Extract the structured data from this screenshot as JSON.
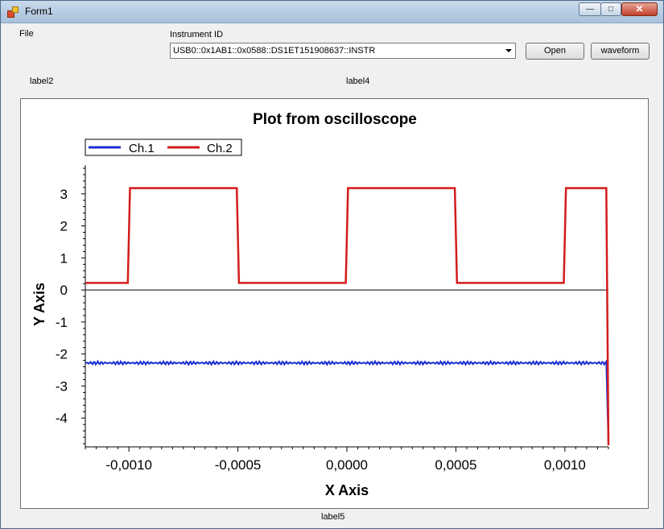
{
  "window": {
    "title": "Form1"
  },
  "title_controls": {
    "minimize": "—",
    "maximize": "□",
    "close": "✕"
  },
  "menu": {
    "file": "File"
  },
  "instrument": {
    "label": "Instrument ID",
    "selected": "USB0::0x1AB1::0x0588::DS1ET151908637::INSTR"
  },
  "buttons": {
    "open": "Open",
    "waveform": "waveform"
  },
  "labels": {
    "label2": "label2",
    "label4": "label4",
    "label5": "label5"
  },
  "colors": {
    "ch1": "#1b2fd1",
    "ch2": "#d41b1b"
  },
  "chart_data": {
    "type": "line",
    "title": "Plot from oscilloscope",
    "xlabel": "X Axis",
    "ylabel": "Y Axis",
    "xlim": [
      -0.0012,
      0.0012
    ],
    "ylim": [
      -4.9,
      3.9
    ],
    "x_ticks": [
      -0.001,
      -0.0005,
      0.0,
      0.0005,
      0.001
    ],
    "x_tick_labels": [
      "-0,0010",
      "-0,0005",
      "0,0000",
      "0,0005",
      "0,0010"
    ],
    "y_ticks": [
      3,
      2,
      1,
      0,
      -1,
      -2,
      -3,
      -4
    ],
    "y_tick_labels": [
      "3",
      "2",
      "1",
      "0",
      "-1",
      "-2",
      "-3",
      "-4"
    ],
    "legend_position": "top-left",
    "series": [
      {
        "name": "Ch.1",
        "shape": "dc",
        "level": -2.28,
        "end_drop": -4.85
      },
      {
        "name": "Ch.2",
        "shape": "square",
        "low": 0.22,
        "high": 3.18,
        "edges": [
          -0.001,
          -0.0005,
          0.0,
          0.0005,
          0.001
        ],
        "end_drop": -4.85
      }
    ]
  }
}
